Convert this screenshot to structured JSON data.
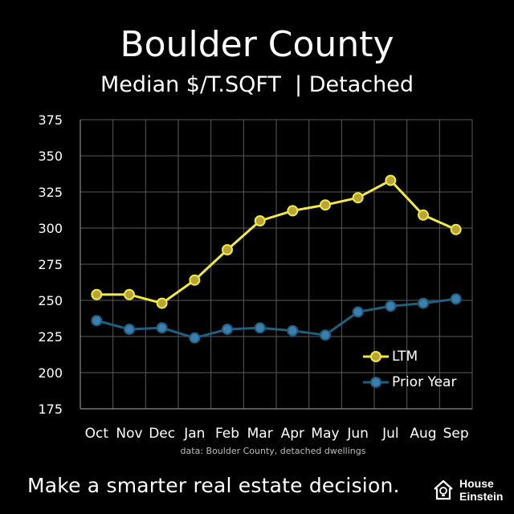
{
  "chart_data": {
    "type": "line",
    "title": "Boulder County",
    "subtitle": "Median $/T.SQFT  | Detached",
    "xlabel": "",
    "ylabel": "",
    "categories": [
      "Oct",
      "Nov",
      "Dec",
      "Jan",
      "Feb",
      "Mar",
      "Apr",
      "May",
      "Jun",
      "Jul",
      "Aug",
      "Sep"
    ],
    "ylim": [
      175,
      375
    ],
    "yticks": [
      175,
      200,
      225,
      250,
      275,
      300,
      325,
      350,
      375
    ],
    "grid": true,
    "legend_position": "bottom-right",
    "series": [
      {
        "name": "LTM",
        "color": "#f2e93f",
        "marker_color": "#b8a53a",
        "values": [
          254,
          254,
          248,
          264,
          285,
          305,
          312,
          316,
          321,
          333,
          309,
          299
        ]
      },
      {
        "name": "Prior Year",
        "color": "#1f5f7f",
        "marker_color": "#3a7fb0",
        "values": [
          236,
          230,
          231,
          224,
          230,
          231,
          229,
          226,
          242,
          246,
          248,
          251
        ]
      }
    ],
    "source_note": "data: Boulder County, detached dwellings"
  },
  "footer": {
    "tagline": "Make a smarter real estate decision.",
    "brand_line1": "House",
    "brand_line2": "Einstein",
    "brand_icon": "house-bulb-icon"
  },
  "colors": {
    "background": "#000000",
    "text": "#ffffff",
    "grid": "#5a5a5a"
  }
}
